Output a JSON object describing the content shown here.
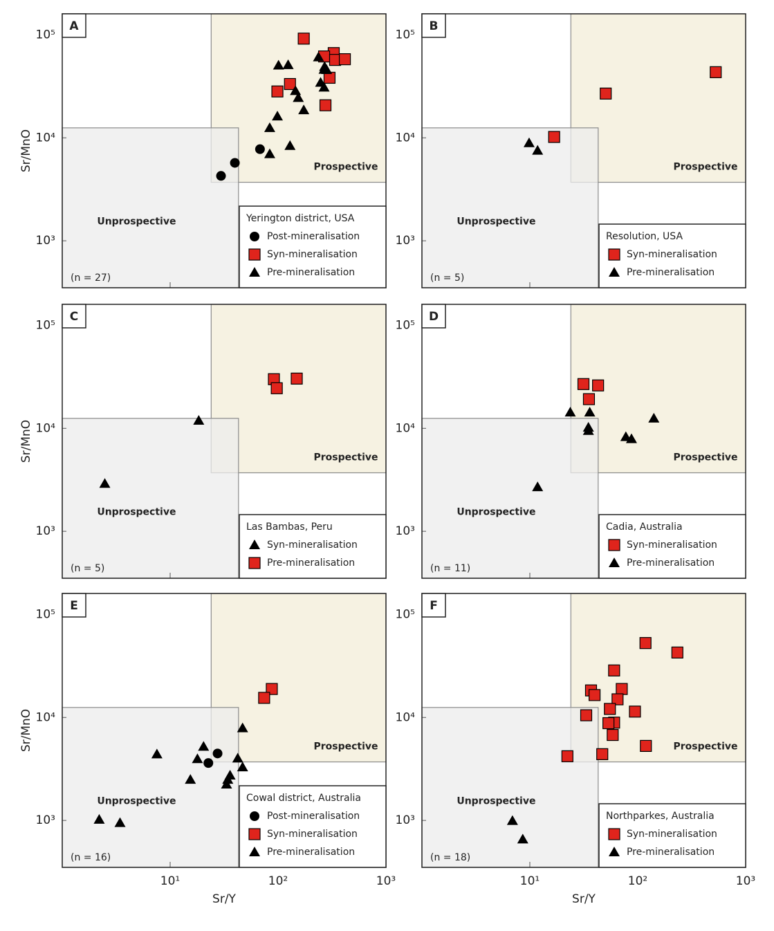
{
  "chart_data": [
    {
      "type": "scatter",
      "panel_label": "A",
      "legend_title": "Yerington district, USA",
      "sample_size": "(n = 27)",
      "ylabel": "Sr/MnO",
      "log_x": true,
      "log_y": true,
      "xlim": [
        1,
        1000
      ],
      "ylim": [
        350,
        160000
      ],
      "xticks": [
        10,
        100
      ],
      "yticks": [
        {
          "value": 1000,
          "label": "10³"
        },
        {
          "value": 10000,
          "label": "10⁴"
        },
        {
          "value": 100000,
          "label": "10⁵"
        }
      ],
      "regions": [
        {
          "label": "Prospective",
          "color": "#f3eed8",
          "xlim": [
            24,
            1000
          ],
          "ylim": [
            3700,
            160000
          ]
        },
        {
          "label": "Unprospective",
          "color": "#ececec",
          "xlim": [
            1,
            43
          ],
          "ylim": [
            350,
            12500
          ]
        }
      ],
      "series": [
        {
          "name": "Post-mineralisation",
          "marker": "circle",
          "color": "#000000",
          "x": [
            29.6,
            39.8,
            68
          ],
          "values": [
            4270,
            5710,
            7760
          ]
        },
        {
          "name": "Syn-mineralisation",
          "marker": "square",
          "color": "#e0241c",
          "x": [
            173,
            328,
            267,
            338,
            416,
            300,
            129,
            98.6,
            275
          ],
          "values": [
            91900,
            66500,
            61700,
            57100,
            58000,
            38300,
            33300,
            28200,
            20700
          ]
        },
        {
          "name": "Pre-mineralisation",
          "marker": "triangle",
          "color": "#000000",
          "x": [
            101,
            124,
            237,
            270,
            282,
            248,
            267,
            145,
            154,
            173,
            98.6,
            83.7,
            129,
            83.7,
            267
          ],
          "values": [
            50500,
            51000,
            60700,
            49000,
            45700,
            34400,
            30900,
            28600,
            24500,
            18600,
            16200,
            12500,
            8370,
            6970,
            46000
          ]
        }
      ]
    },
    {
      "type": "scatter",
      "panel_label": "B",
      "legend_title": "Resolution, USA",
      "sample_size": "(n = 5)",
      "log_x": true,
      "log_y": true,
      "xlim": [
        1,
        1000
      ],
      "ylim": [
        350,
        160000
      ],
      "xticks": [
        10,
        100
      ],
      "yticks": [
        {
          "value": 1000,
          "label": "10³"
        },
        {
          "value": 10000,
          "label": "10⁴"
        },
        {
          "value": 100000,
          "label": "10⁵"
        }
      ],
      "regions": [
        {
          "label": "Prospective",
          "color": "#f3eed8",
          "xlim": [
            24,
            1000
          ],
          "ylim": [
            3700,
            160000
          ]
        },
        {
          "label": "Unprospective",
          "color": "#ececec",
          "xlim": [
            1,
            43
          ],
          "ylim": [
            350,
            12500
          ]
        }
      ],
      "series": [
        {
          "name": "Syn-mineralisation",
          "marker": "square",
          "color": "#e0241c",
          "x": [
            528,
            50.5,
            16.8
          ],
          "values": [
            43400,
            26900,
            10200
          ]
        },
        {
          "name": "Pre-mineralisation",
          "marker": "triangle",
          "color": "#000000",
          "x": [
            9.85,
            11.8
          ],
          "values": [
            8910,
            7530
          ]
        }
      ]
    },
    {
      "type": "scatter",
      "panel_label": "C",
      "legend_title": "Las Bambas, Peru",
      "sample_size": "(n = 5)",
      "ylabel": "Sr/MnO",
      "log_x": true,
      "log_y": true,
      "xlim": [
        1,
        1000
      ],
      "ylim": [
        350,
        160000
      ],
      "xticks": [
        10,
        100
      ],
      "yticks": [
        {
          "value": 1000,
          "label": "10³"
        },
        {
          "value": 10000,
          "label": "10⁴"
        },
        {
          "value": 100000,
          "label": "10⁵"
        }
      ],
      "regions": [
        {
          "label": "Prospective",
          "color": "#f3eed8",
          "xlim": [
            24,
            1000
          ],
          "ylim": [
            3700,
            160000
          ]
        },
        {
          "label": "Unprospective",
          "color": "#ececec",
          "xlim": [
            1,
            43
          ],
          "ylim": [
            350,
            12500
          ]
        }
      ],
      "series": [
        {
          "name": "Syn-mineralisation",
          "marker": "triangle",
          "color": "#000000",
          "x": [
            18.4,
            2.48
          ],
          "values": [
            11900,
            2900
          ]
        },
        {
          "name": "Pre-mineralisation",
          "marker": "square",
          "color": "#e0241c",
          "x": [
            91.5,
            97.3,
            149
          ],
          "values": [
            30000,
            24500,
            30400
          ]
        }
      ]
    },
    {
      "type": "scatter",
      "panel_label": "D",
      "legend_title": "Cadia, Australia",
      "sample_size": "(n = 11)",
      "log_x": true,
      "log_y": true,
      "xlim": [
        1,
        1000
      ],
      "ylim": [
        350,
        160000
      ],
      "xticks": [
        10,
        100
      ],
      "yticks": [
        {
          "value": 1000,
          "label": "10³"
        },
        {
          "value": 10000,
          "label": "10⁴"
        },
        {
          "value": 100000,
          "label": "10⁵"
        }
      ],
      "regions": [
        {
          "label": "Prospective",
          "color": "#f3eed8",
          "xlim": [
            24,
            1000
          ],
          "ylim": [
            3700,
            160000
          ]
        },
        {
          "label": "Unprospective",
          "color": "#ececec",
          "xlim": [
            1,
            43
          ],
          "ylim": [
            350,
            12500
          ]
        }
      ],
      "series": [
        {
          "name": "Syn-mineralisation",
          "marker": "square",
          "color": "#e0241c",
          "x": [
            31.4,
            42.9,
            35.3
          ],
          "values": [
            26900,
            26100,
            19200
          ]
        },
        {
          "name": "Pre-mineralisation",
          "marker": "triangle",
          "color": "#000000",
          "x": [
            23.7,
            35.9,
            34.9,
            34.9,
            77.6,
            87.5,
            141,
            11.8
          ],
          "values": [
            14300,
            14300,
            10200,
            9480,
            8260,
            7890,
            12500,
            2690
          ]
        }
      ]
    },
    {
      "type": "scatter",
      "panel_label": "E",
      "legend_title": "Cowal district, Australia",
      "sample_size": "(n = 16)",
      "ylabel": "Sr/MnO",
      "xlabel": "Sr/Y",
      "log_x": true,
      "log_y": true,
      "xlim": [
        1,
        1000
      ],
      "ylim": [
        350,
        160000
      ],
      "xticks": [
        {
          "value": 10,
          "label": "10¹"
        },
        {
          "value": 100,
          "label": "10²"
        },
        {
          "value": 1000,
          "label": "10³"
        }
      ],
      "yticks": [
        {
          "value": 1000,
          "label": "10³"
        },
        {
          "value": 10000,
          "label": "10⁴"
        },
        {
          "value": 100000,
          "label": "10⁵"
        }
      ],
      "regions": [
        {
          "label": "Prospective",
          "color": "#f3eed8",
          "xlim": [
            24,
            1000
          ],
          "ylim": [
            3700,
            160000
          ]
        },
        {
          "label": "Unprospective",
          "color": "#ececec",
          "xlim": [
            1,
            43
          ],
          "ylim": [
            350,
            12500
          ]
        }
      ],
      "series": [
        {
          "name": "Post-mineralisation",
          "marker": "circle",
          "color": "#000000",
          "x": [
            27.5,
            22.6
          ],
          "values": [
            4470,
            3610
          ]
        },
        {
          "name": "Syn-mineralisation",
          "marker": "square",
          "color": "#e0241c",
          "x": [
            87.5,
            74.3
          ],
          "values": [
            18900,
            15500
          ]
        },
        {
          "name": "Pre-mineralisation",
          "marker": "triangle",
          "color": "#000000",
          "x": [
            46.9,
            20.4,
            17.9,
            7.54,
            42.3,
            46.9,
            35.9,
            33.3,
            15.4,
            2.2,
            3.43,
            34.2
          ],
          "values": [
            7890,
            5210,
            3950,
            4400,
            4010,
            3290,
            2740,
            2240,
            2490,
            1020,
            948,
            2490
          ]
        }
      ]
    },
    {
      "type": "scatter",
      "panel_label": "F",
      "legend_title": "Northparkes, Australia",
      "sample_size": "(n = 18)",
      "xlabel": "Sr/Y",
      "log_x": true,
      "log_y": true,
      "xlim": [
        1,
        1000
      ],
      "ylim": [
        350,
        160000
      ],
      "xticks": [
        {
          "value": 10,
          "label": "10¹"
        },
        {
          "value": 100,
          "label": "10²"
        },
        {
          "value": 1000,
          "label": "10³"
        }
      ],
      "yticks": [
        {
          "value": 1000,
          "label": "10³"
        },
        {
          "value": 10000,
          "label": "10⁴"
        },
        {
          "value": 100000,
          "label": "10⁵"
        }
      ],
      "regions": [
        {
          "label": "Prospective",
          "color": "#f3eed8",
          "xlim": [
            24,
            1000
          ],
          "ylim": [
            3700,
            160000
          ]
        },
        {
          "label": "Unprospective",
          "color": "#ececec",
          "xlim": [
            1,
            43
          ],
          "ylim": [
            350,
            12500
          ]
        }
      ],
      "series": [
        {
          "name": "Syn-mineralisation",
          "marker": "square",
          "color": "#e0241c",
          "x": [
            118,
            233,
            60.4,
            71.1,
            36.9,
            39.8,
            65,
            55.2,
            94.2,
            33.3,
            60.4,
            53.5,
            58.6,
            119,
            46.9,
            22.3
          ],
          "values": [
            52800,
            42700,
            28600,
            18900,
            18300,
            16500,
            15000,
            12100,
            11400,
            10500,
            8910,
            8800,
            6760,
            5290,
            4400,
            4200
          ]
        },
        {
          "name": "Pre-mineralisation",
          "marker": "triangle",
          "color": "#000000",
          "x": [
            6.9,
            8.6
          ],
          "values": [
            993,
            656
          ]
        }
      ]
    }
  ]
}
